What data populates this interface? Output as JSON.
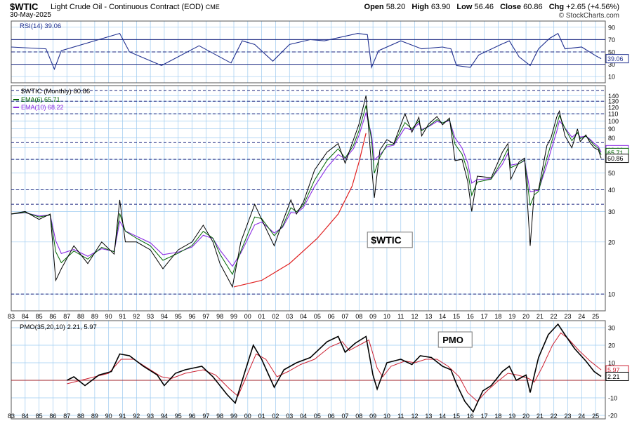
{
  "header": {
    "symbol": "$WTIC",
    "name": "Light Crude Oil - Continuous Contract (EOD)",
    "exchange": "CME",
    "date": "30-May-2025",
    "open_label": "Open",
    "open": "58.20",
    "high_label": "High",
    "high": "63.90",
    "low_label": "Low",
    "low": "56.46",
    "close_label": "Close",
    "close": "60.86",
    "chg_label": "Chg",
    "chg": "+2.65 (+4.56%)",
    "logo": "© StockCharts.com"
  },
  "colors": {
    "price": "#000000",
    "ema6": "#006400",
    "ema10": "#8a2be2",
    "rsi": "#1f2f8f",
    "pmo": "#000000",
    "pmo_signal": "#cc2233",
    "parabola": "#e02020",
    "grid": "#9ecbf0",
    "hline": "#1a237e"
  },
  "chart_data": [
    {
      "type": "line",
      "panel": "RSI",
      "legend": "RSI(14) 39.06",
      "last_value": 39.06,
      "ylim": [
        0,
        100
      ],
      "y_ticks": [
        10,
        30,
        50,
        70,
        90
      ],
      "lines": [
        30,
        50,
        70
      ],
      "points": [
        [
          1983.0,
          58
        ],
        [
          1985.5,
          55
        ],
        [
          1986.1,
          22
        ],
        [
          1986.6,
          52
        ],
        [
          1990.8,
          80
        ],
        [
          1991.5,
          50
        ],
        [
          1993.8,
          28
        ],
        [
          1996.5,
          60
        ],
        [
          1998.8,
          32
        ],
        [
          1999.6,
          68
        ],
        [
          2000.5,
          62
        ],
        [
          2001.8,
          35
        ],
        [
          2003.0,
          62
        ],
        [
          2004.5,
          70
        ],
        [
          2005.5,
          68
        ],
        [
          2007.9,
          80
        ],
        [
          2008.6,
          78
        ],
        [
          2008.9,
          25
        ],
        [
          2009.4,
          52
        ],
        [
          2011.0,
          68
        ],
        [
          2012.5,
          55
        ],
        [
          2014.0,
          58
        ],
        [
          2014.6,
          55
        ],
        [
          2015.0,
          28
        ],
        [
          2016.0,
          25
        ],
        [
          2016.6,
          45
        ],
        [
          2018.2,
          62
        ],
        [
          2018.8,
          68
        ],
        [
          2019.5,
          42
        ],
        [
          2020.3,
          28
        ],
        [
          2020.9,
          55
        ],
        [
          2021.7,
          72
        ],
        [
          2022.3,
          80
        ],
        [
          2022.8,
          55
        ],
        [
          2024.0,
          58
        ],
        [
          2025.0,
          44
        ],
        [
          2025.4,
          39.06
        ]
      ]
    },
    {
      "type": "line",
      "panel": "Price",
      "legend": "$WTIC (Monthly) 60.86",
      "series": [
        {
          "name": "EMA(6) 65.71",
          "last": 65.71
        },
        {
          "name": "EMA(10) 68.22",
          "last": 68.22
        }
      ],
      "last_price": 60.86,
      "annotation": "$WTIC",
      "y_scale": "log",
      "ylim": [
        8,
        160
      ],
      "y_ticks": [
        10,
        20,
        30,
        40,
        50,
        60,
        70,
        80,
        90,
        100,
        110,
        120,
        130,
        140
      ],
      "hlines": [
        10,
        33,
        40,
        60,
        75,
        110,
        130,
        150
      ],
      "x_ticks": [
        "83",
        "84",
        "85",
        "86",
        "87",
        "88",
        "89",
        "90",
        "91",
        "92",
        "93",
        "94",
        "95",
        "96",
        "97",
        "98",
        "99",
        "00",
        "01",
        "02",
        "03",
        "04",
        "05",
        "06",
        "07",
        "08",
        "09",
        "10",
        "11",
        "12",
        "13",
        "14",
        "15",
        "16",
        "17",
        "18",
        "19",
        "20",
        "21",
        "22",
        "23",
        "24",
        "25"
      ],
      "parabola": [
        [
          1999.0,
          11
        ],
        [
          2001.0,
          12
        ],
        [
          2003.0,
          15
        ],
        [
          2005.0,
          21
        ],
        [
          2006.5,
          29
        ],
        [
          2007.5,
          42
        ],
        [
          2008.0,
          58
        ],
        [
          2008.5,
          85
        ]
      ],
      "points": [
        [
          1983.0,
          29
        ],
        [
          1984.0,
          30
        ],
        [
          1985.0,
          27
        ],
        [
          1985.8,
          29
        ],
        [
          1986.2,
          12
        ],
        [
          1986.6,
          14
        ],
        [
          1987.5,
          19
        ],
        [
          1988.5,
          15
        ],
        [
          1989.5,
          20
        ],
        [
          1990.4,
          17
        ],
        [
          1990.8,
          35
        ],
        [
          1991.2,
          20
        ],
        [
          1992.0,
          20
        ],
        [
          1993.0,
          18
        ],
        [
          1993.9,
          14
        ],
        [
          1995.0,
          18
        ],
        [
          1996.0,
          20
        ],
        [
          1996.8,
          25
        ],
        [
          1997.5,
          20
        ],
        [
          1998.0,
          15
        ],
        [
          1998.9,
          11
        ],
        [
          1999.5,
          20
        ],
        [
          2000.5,
          33
        ],
        [
          2001.0,
          27
        ],
        [
          2001.9,
          19
        ],
        [
          2002.5,
          26
        ],
        [
          2003.1,
          35
        ],
        [
          2003.5,
          29
        ],
        [
          2004.0,
          34
        ],
        [
          2004.8,
          52
        ],
        [
          2005.7,
          66
        ],
        [
          2006.5,
          74
        ],
        [
          2007.0,
          57
        ],
        [
          2007.6,
          78
        ],
        [
          2008.0,
          96
        ],
        [
          2008.5,
          140
        ],
        [
          2008.9,
          55
        ],
        [
          2009.1,
          36
        ],
        [
          2009.5,
          68
        ],
        [
          2010.0,
          78
        ],
        [
          2010.5,
          74
        ],
        [
          2011.3,
          110
        ],
        [
          2011.8,
          86
        ],
        [
          2012.3,
          105
        ],
        [
          2012.5,
          82
        ],
        [
          2013.0,
          96
        ],
        [
          2013.6,
          106
        ],
        [
          2014.0,
          95
        ],
        [
          2014.5,
          104
        ],
        [
          2014.9,
          59
        ],
        [
          2015.4,
          60
        ],
        [
          2015.8,
          45
        ],
        [
          2016.1,
          30
        ],
        [
          2016.5,
          48
        ],
        [
          2017.5,
          47
        ],
        [
          2018.3,
          66
        ],
        [
          2018.7,
          74
        ],
        [
          2018.9,
          46
        ],
        [
          2019.5,
          58
        ],
        [
          2019.9,
          61
        ],
        [
          2020.3,
          19
        ],
        [
          2020.6,
          40
        ],
        [
          2020.9,
          40
        ],
        [
          2021.5,
          72
        ],
        [
          2021.8,
          80
        ],
        [
          2022.2,
          105
        ],
        [
          2022.4,
          114
        ],
        [
          2022.8,
          82
        ],
        [
          2023.3,
          70
        ],
        [
          2023.7,
          90
        ],
        [
          2023.9,
          76
        ],
        [
          2024.3,
          83
        ],
        [
          2024.6,
          75
        ],
        [
          2024.9,
          70
        ],
        [
          2025.2,
          68
        ],
        [
          2025.4,
          60.86
        ]
      ]
    },
    {
      "type": "line",
      "panel": "PMO",
      "legend": "PMO(35,20,10) 2.21, 5.97",
      "pmo_last": 2.21,
      "signal_last": 5.97,
      "annotation": "PMO",
      "ylim": [
        -22,
        34
      ],
      "y_ticks": [
        -20,
        -10,
        10,
        20,
        30
      ],
      "zero_line": 0,
      "pmo": [
        [
          1987.0,
          0
        ],
        [
          1987.5,
          2
        ],
        [
          1988.3,
          -3
        ],
        [
          1989.3,
          3
        ],
        [
          1990.2,
          5
        ],
        [
          1990.8,
          15
        ],
        [
          1991.5,
          14
        ],
        [
          1992.5,
          8
        ],
        [
          1993.5,
          3
        ],
        [
          1994.0,
          -3
        ],
        [
          1994.8,
          4
        ],
        [
          1995.5,
          6
        ],
        [
          1996.7,
          8
        ],
        [
          1997.5,
          2
        ],
        [
          1998.5,
          -8
        ],
        [
          1999.1,
          -13
        ],
        [
          1999.8,
          5
        ],
        [
          2000.4,
          20
        ],
        [
          2001.0,
          12
        ],
        [
          2001.9,
          -4
        ],
        [
          2002.6,
          6
        ],
        [
          2003.5,
          10
        ],
        [
          2004.5,
          13
        ],
        [
          2005.7,
          22
        ],
        [
          2006.5,
          25
        ],
        [
          2007.0,
          16
        ],
        [
          2007.7,
          21
        ],
        [
          2008.5,
          25
        ],
        [
          2009.0,
          3
        ],
        [
          2009.3,
          -5
        ],
        [
          2010.0,
          10
        ],
        [
          2011.0,
          12
        ],
        [
          2011.8,
          9
        ],
        [
          2012.4,
          14
        ],
        [
          2013.2,
          13
        ],
        [
          2014.0,
          8
        ],
        [
          2014.6,
          6
        ],
        [
          2015.0,
          -2
        ],
        [
          2015.6,
          -12
        ],
        [
          2016.2,
          -18
        ],
        [
          2016.9,
          -6
        ],
        [
          2017.5,
          -3
        ],
        [
          2018.3,
          5
        ],
        [
          2018.8,
          8
        ],
        [
          2019.3,
          0
        ],
        [
          2020.0,
          3
        ],
        [
          2020.3,
          -7
        ],
        [
          2020.9,
          13
        ],
        [
          2021.6,
          26
        ],
        [
          2022.3,
          32
        ],
        [
          2022.8,
          26
        ],
        [
          2023.5,
          18
        ],
        [
          2024.3,
          11
        ],
        [
          2024.9,
          5
        ],
        [
          2025.4,
          2.21
        ]
      ],
      "signal": [
        [
          1987.0,
          -2
        ],
        [
          1988.0,
          0
        ],
        [
          1989.0,
          2
        ],
        [
          1990.0,
          4
        ],
        [
          1990.9,
          12
        ],
        [
          1991.8,
          12
        ],
        [
          1992.8,
          7
        ],
        [
          1993.8,
          2
        ],
        [
          1994.5,
          1
        ],
        [
          1995.5,
          4
        ],
        [
          1996.8,
          6
        ],
        [
          1997.7,
          3
        ],
        [
          1998.7,
          -5
        ],
        [
          1999.3,
          -9
        ],
        [
          2000.0,
          4
        ],
        [
          2000.6,
          15
        ],
        [
          2001.3,
          12
        ],
        [
          2002.1,
          2
        ],
        [
          2002.9,
          5
        ],
        [
          2003.8,
          9
        ],
        [
          2004.8,
          12
        ],
        [
          2005.9,
          19
        ],
        [
          2006.8,
          22
        ],
        [
          2007.3,
          17
        ],
        [
          2008.0,
          20
        ],
        [
          2008.7,
          23
        ],
        [
          2009.3,
          7
        ],
        [
          2009.7,
          2
        ],
        [
          2010.3,
          8
        ],
        [
          2011.3,
          11
        ],
        [
          2012.0,
          10
        ],
        [
          2012.8,
          12
        ],
        [
          2013.6,
          12
        ],
        [
          2014.4,
          8
        ],
        [
          2015.2,
          2
        ],
        [
          2015.8,
          -7
        ],
        [
          2016.5,
          -12
        ],
        [
          2017.2,
          -6
        ],
        [
          2017.9,
          -1
        ],
        [
          2018.7,
          4
        ],
        [
          2019.4,
          3
        ],
        [
          2020.2,
          1
        ],
        [
          2020.6,
          -1
        ],
        [
          2021.2,
          8
        ],
        [
          2021.9,
          20
        ],
        [
          2022.5,
          27
        ],
        [
          2023.0,
          24
        ],
        [
          2023.8,
          17
        ],
        [
          2024.6,
          11
        ],
        [
          2025.4,
          5.97
        ]
      ]
    }
  ]
}
